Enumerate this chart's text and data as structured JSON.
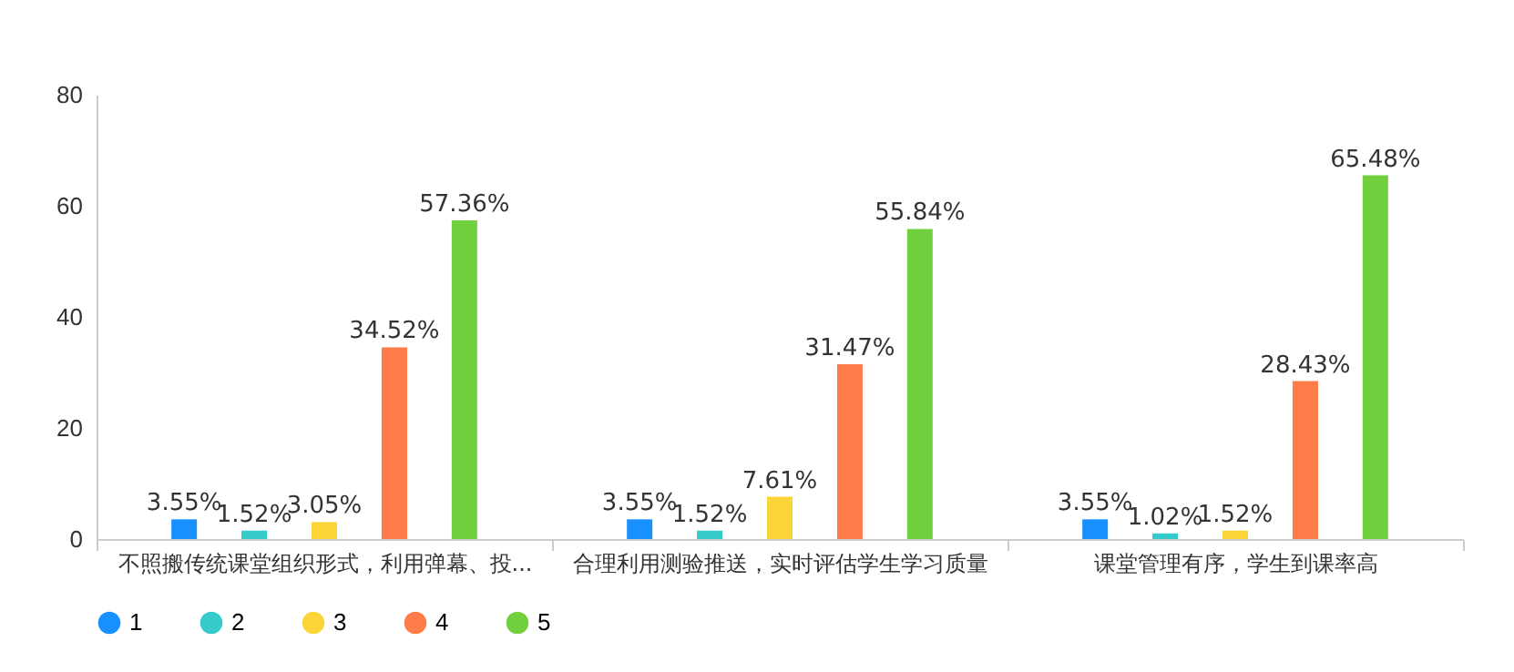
{
  "chart_data": {
    "type": "bar",
    "categories": [
      "不照搬传统课堂组织形式，利用弹幕、投...",
      "合理利用测验推送，实时评估学生学习质量",
      "课堂管理有序，学生到课率高"
    ],
    "series": [
      {
        "name": "1",
        "color": "#1890ff",
        "values": [
          3.55,
          3.55,
          3.55
        ],
        "value_labels": [
          "3.55%",
          "3.55%",
          "3.55%"
        ]
      },
      {
        "name": "2",
        "color": "#36cbcb",
        "values": [
          1.52,
          1.52,
          1.02
        ],
        "value_labels": [
          "1.52%",
          "1.52%",
          "1.02%"
        ]
      },
      {
        "name": "3",
        "color": "#fbd437",
        "values": [
          3.05,
          7.61,
          1.52
        ],
        "value_labels": [
          "3.05%",
          "7.61%",
          "1.52%"
        ]
      },
      {
        "name": "4",
        "color": "#ff7b47",
        "values": [
          34.52,
          31.47,
          28.43
        ],
        "value_labels": [
          "34.52%",
          "31.47%",
          "28.43%"
        ]
      },
      {
        "name": "5",
        "color": "#72cf3e",
        "values": [
          57.36,
          55.84,
          65.48
        ],
        "value_labels": [
          "57.36%",
          "55.84%",
          "65.48%"
        ]
      }
    ],
    "ylim": [
      0,
      80
    ],
    "yticks": [
      0,
      20,
      40,
      60,
      80
    ],
    "grid": false,
    "legend": "bottom"
  }
}
